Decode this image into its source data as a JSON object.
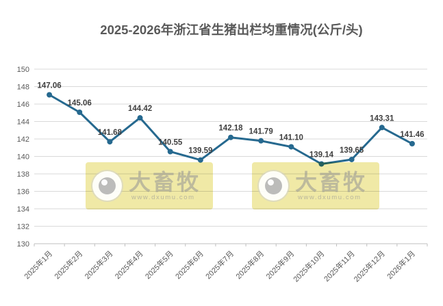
{
  "title": "2025-2026年浙江省生猪出栏均重情况(公斤/头)",
  "chart_data": {
    "type": "line",
    "title": "2025-2026年浙江省生猪出栏均重情况(公斤/头)",
    "categories": [
      "2025年1月",
      "2025年2月",
      "2025年3月",
      "2025年4月",
      "2025年5月",
      "2025年6月",
      "2025年7月",
      "2025年8月",
      "2025年9月",
      "2025年10月",
      "2025年11月",
      "2025年12月",
      "2026年1月"
    ],
    "values": [
      147.06,
      145.06,
      141.68,
      144.42,
      140.55,
      139.59,
      142.18,
      141.79,
      141.1,
      139.14,
      139.65,
      143.31,
      141.46
    ],
    "data_labels": [
      "147.06",
      "145.06",
      "141.68",
      "144.42",
      "140.55",
      "139.59",
      "142.18",
      "141.79",
      "141.10",
      "139.14",
      "139.65",
      "143.31",
      "141.46"
    ],
    "xlabel": "",
    "ylabel": "",
    "ylim": [
      130,
      150
    ],
    "ytick_step": 2,
    "grid": true,
    "legend": "none",
    "marker": "circle"
  },
  "watermark": {
    "brand": "大畜牧",
    "url": "www.dxumu.com"
  },
  "colors": {
    "line": "#26698F",
    "title_text": "#595959",
    "axis_text": "#595959",
    "data_label_text": "#3F3F3F",
    "gridline": "#D9D9D9",
    "axis_line": "#BFBFBF",
    "watermark_bg": "#F0E9A6"
  }
}
